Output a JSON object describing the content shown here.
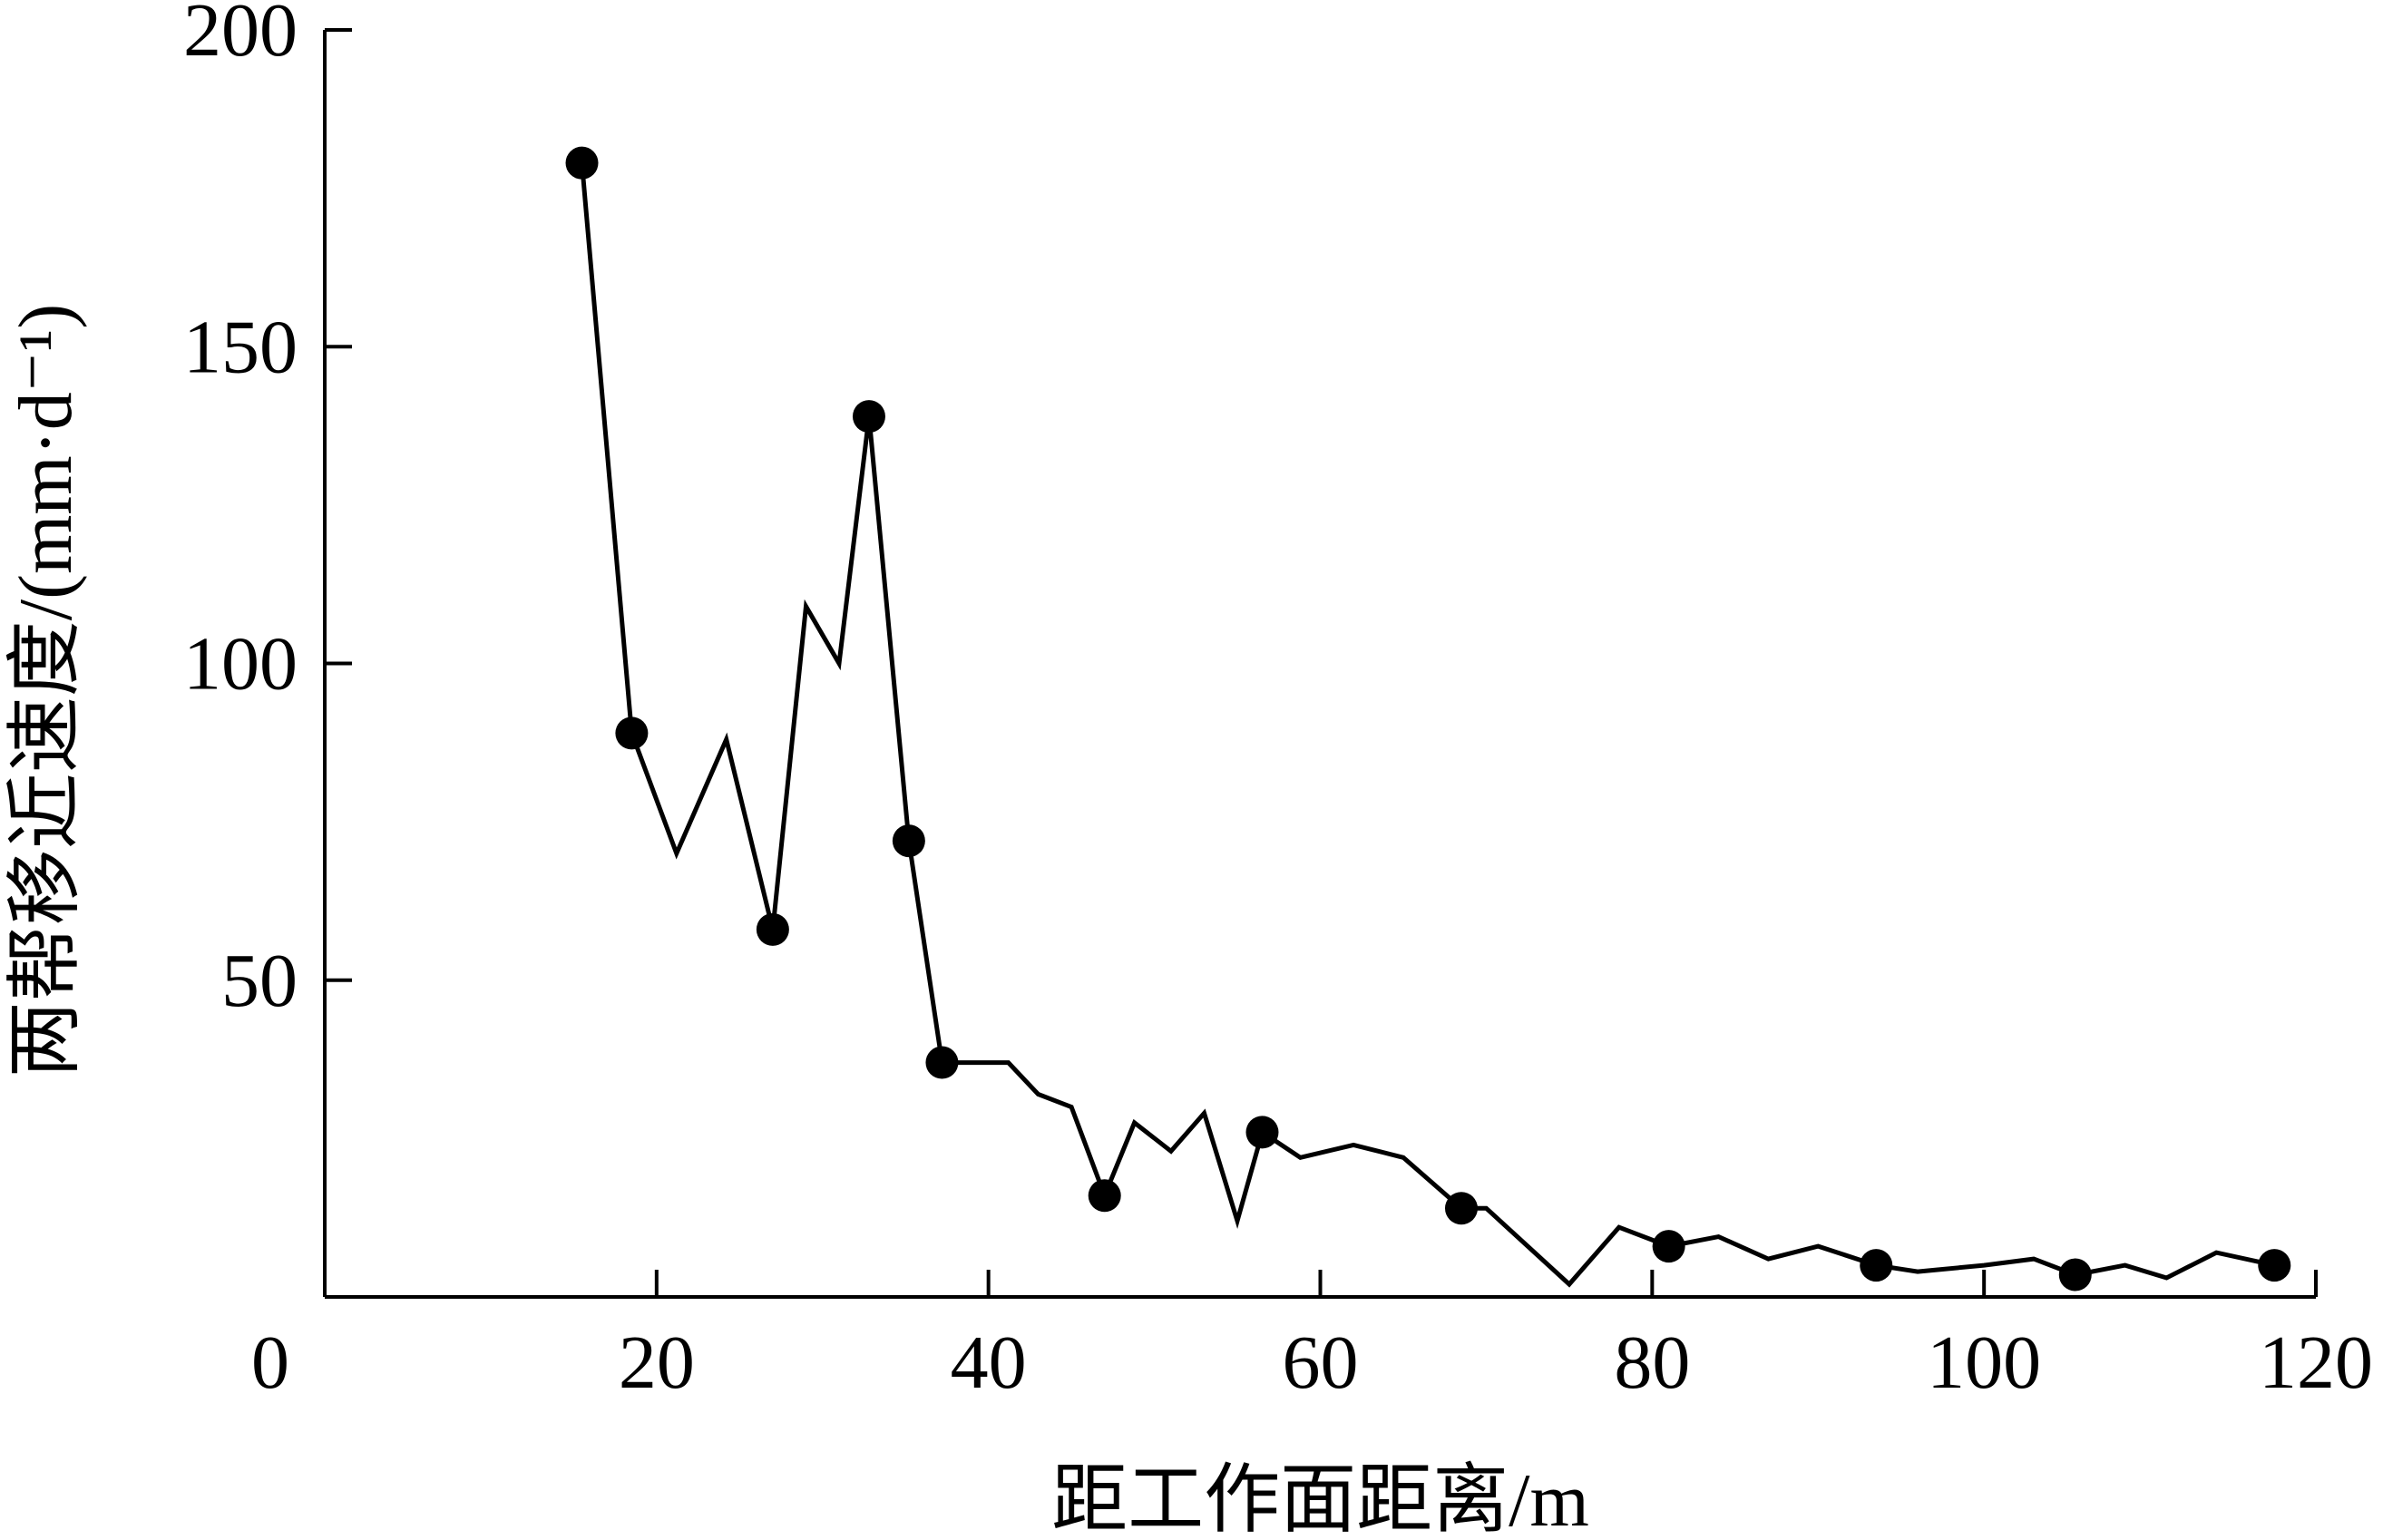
{
  "chart_data": {
    "type": "line",
    "title": "",
    "xlabel": "距工作面距离/m",
    "ylabel": "两帮移近速度/(mm·d⁻¹)",
    "xlim": [
      0,
      120
    ],
    "ylim": [
      0,
      200
    ],
    "x_ticks": [
      20,
      40,
      60,
      80,
      100,
      120
    ],
    "y_ticks": [
      50,
      100,
      150,
      200
    ],
    "origin_label": "0",
    "grid": false,
    "legend": "none",
    "color": "#000000",
    "series": [
      {
        "points": [
          [
            15.5,
            179
          ],
          [
            18.5,
            89
          ],
          [
            21.2,
            70
          ],
          [
            24.2,
            88
          ],
          [
            27.0,
            58
          ],
          [
            29.0,
            109
          ],
          [
            31.0,
            100
          ],
          [
            32.8,
            139
          ],
          [
            35.2,
            72
          ],
          [
            37.2,
            37
          ],
          [
            41.2,
            37
          ],
          [
            43.0,
            32
          ],
          [
            45.0,
            30
          ],
          [
            47.0,
            16
          ],
          [
            48.8,
            27.5
          ],
          [
            51.0,
            23
          ],
          [
            53.0,
            29
          ],
          [
            55.0,
            12
          ],
          [
            56.5,
            26
          ],
          [
            58.8,
            22
          ],
          [
            62.0,
            24
          ],
          [
            65.0,
            22
          ],
          [
            68.5,
            14
          ],
          [
            70.0,
            14
          ],
          [
            75.0,
            2
          ],
          [
            78.0,
            11
          ],
          [
            81.0,
            8
          ],
          [
            84.0,
            9.5
          ],
          [
            87.0,
            6
          ],
          [
            90.0,
            8
          ],
          [
            93.5,
            5
          ],
          [
            96.0,
            4
          ],
          [
            100.0,
            5
          ],
          [
            103.0,
            6
          ],
          [
            105.5,
            3.5
          ],
          [
            108.5,
            5
          ],
          [
            111.0,
            3
          ],
          [
            114.0,
            7
          ],
          [
            117.5,
            5
          ]
        ],
        "marker_indices": [
          0,
          1,
          4,
          7,
          8,
          9,
          13,
          18,
          22,
          26,
          30,
          34,
          38
        ]
      }
    ]
  }
}
